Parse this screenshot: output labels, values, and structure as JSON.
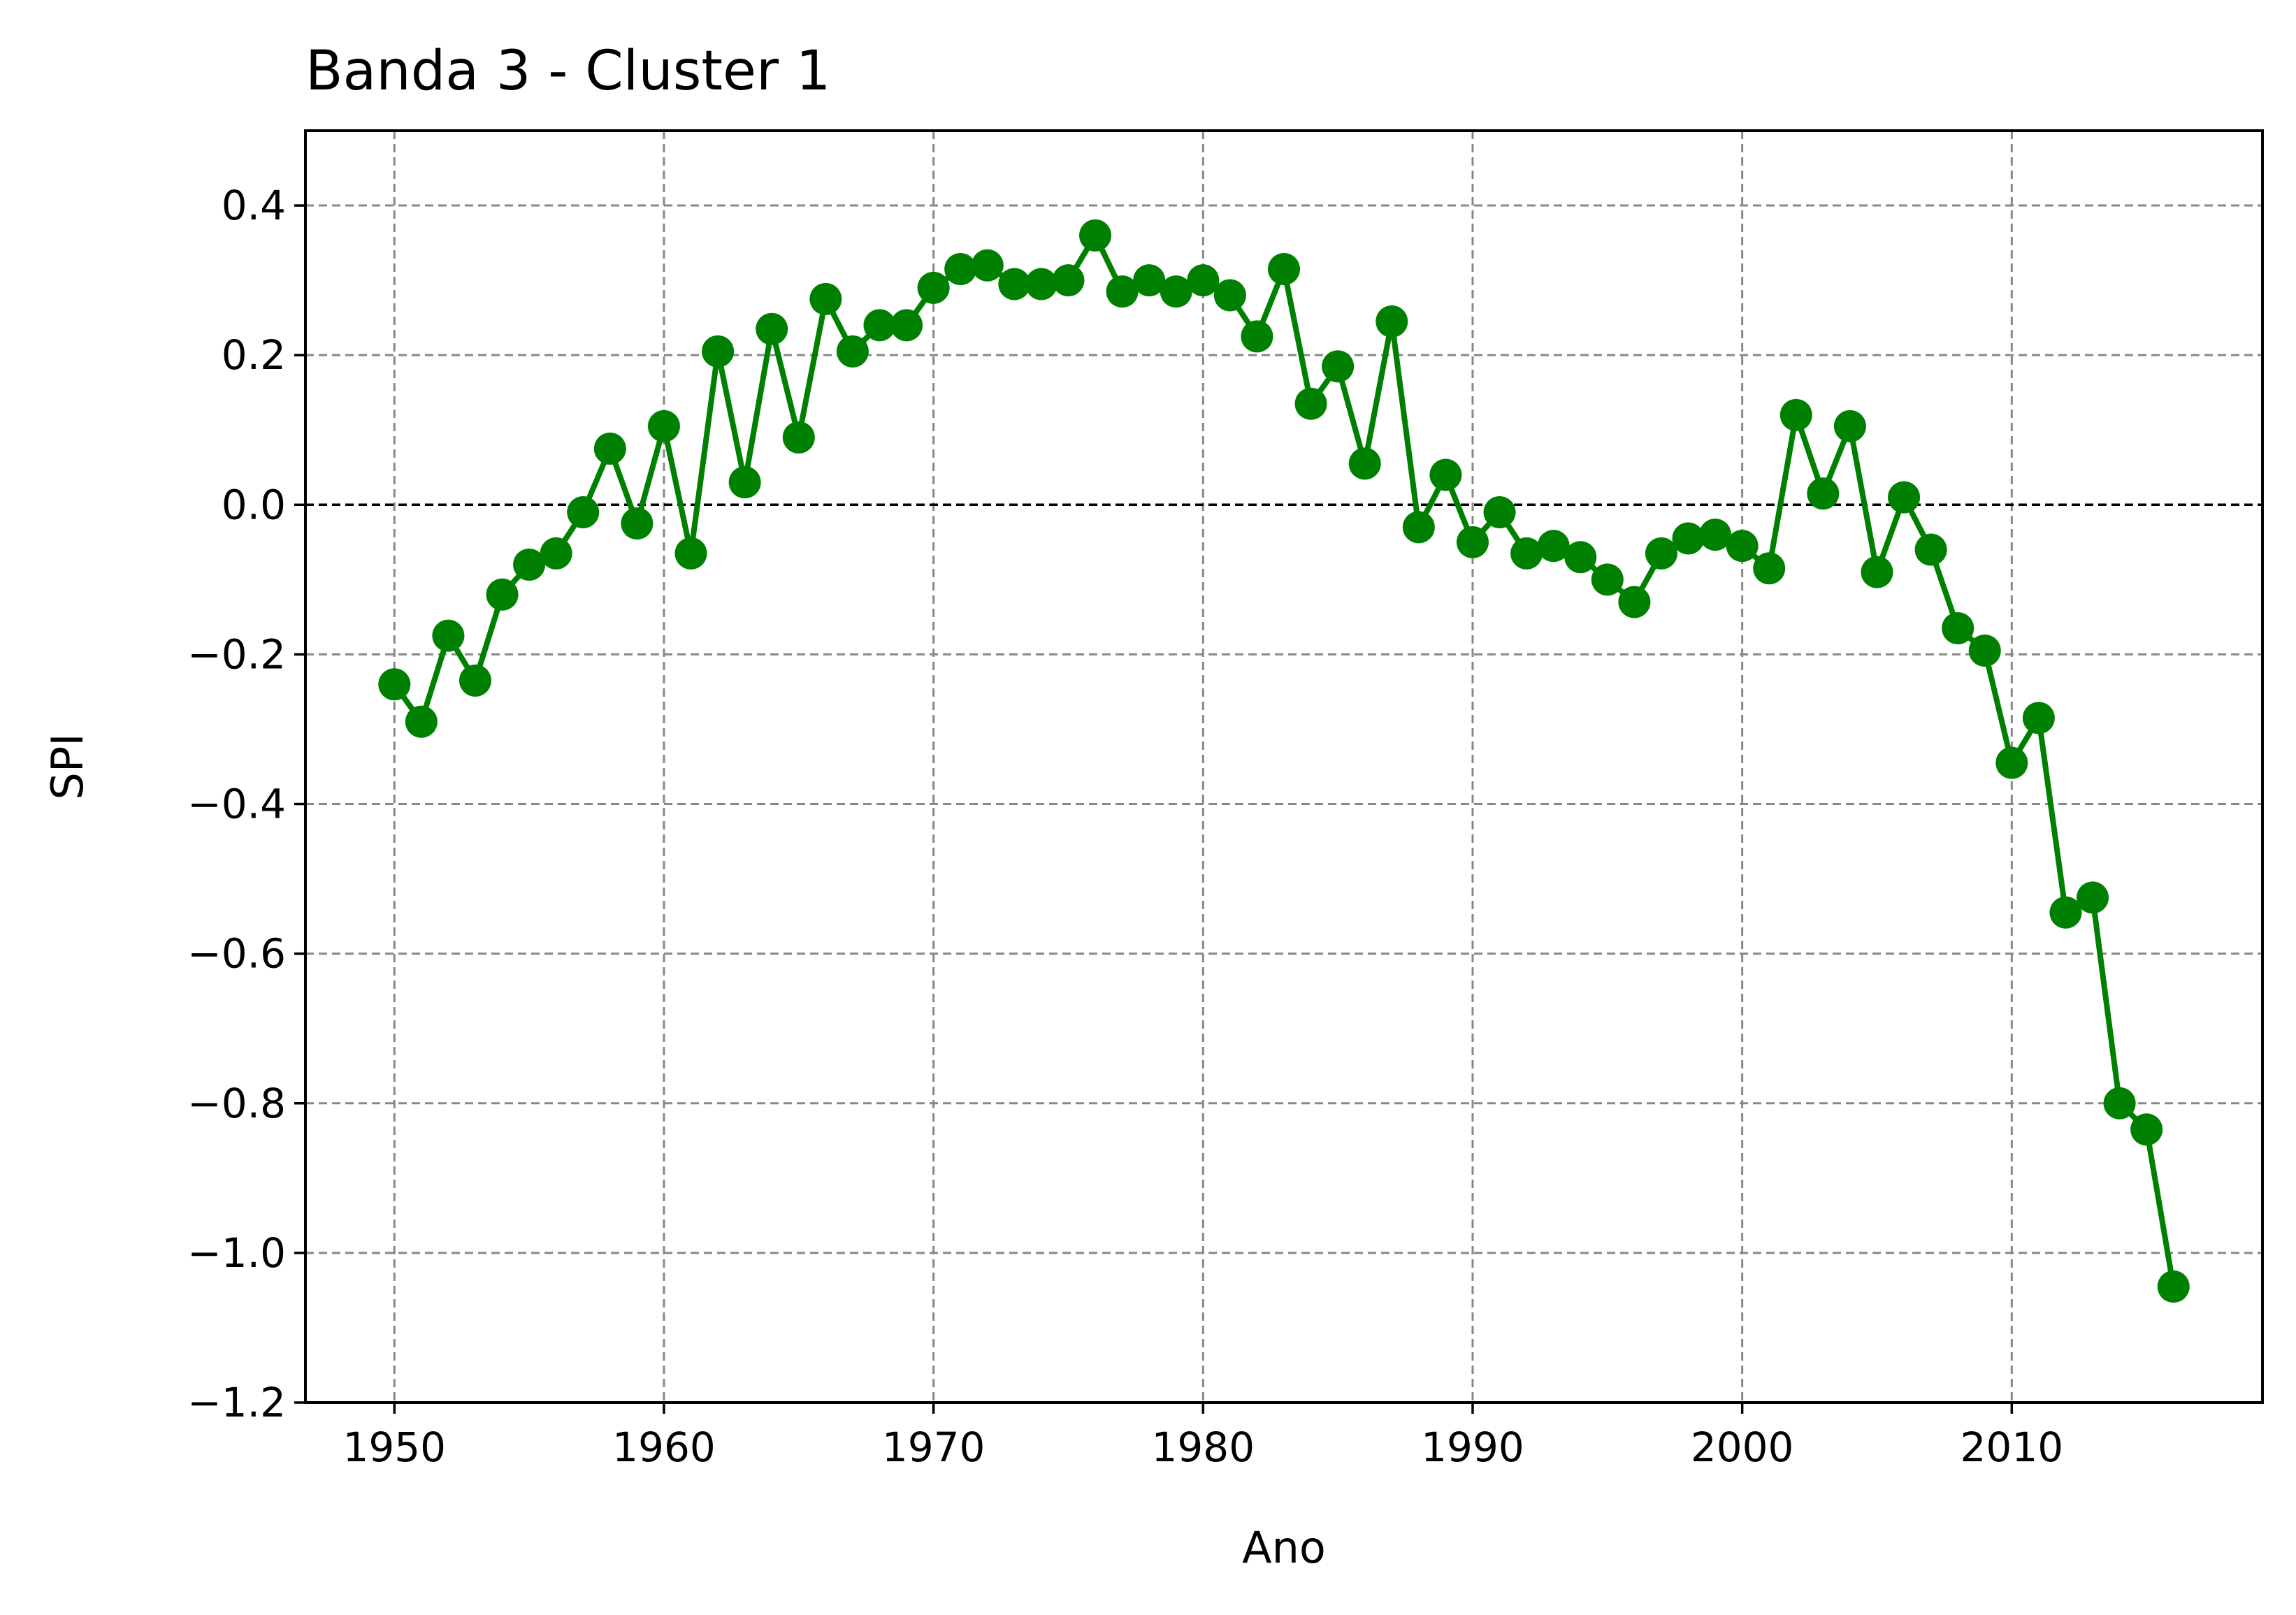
{
  "chart_data": {
    "type": "line",
    "title": "Banda 3 - Cluster 1",
    "xlabel": "Ano",
    "ylabel": "SPI",
    "xlim": [
      1946.7,
      2019.3
    ],
    "ylim": [
      -1.2,
      0.5
    ],
    "xticks": [
      1950,
      1960,
      1970,
      1980,
      1990,
      2000,
      2010
    ],
    "xtick_labels": [
      "1950",
      "1960",
      "1970",
      "1980",
      "1990",
      "2000",
      "2010"
    ],
    "yticks": [
      0.4,
      0.2,
      0.0,
      -0.2,
      -0.4,
      -0.6,
      -0.8,
      -1.0,
      -1.2
    ],
    "ytick_labels": [
      "0.4",
      "0.2",
      "0.0",
      "−0.2",
      "−0.4",
      "−0.6",
      "−0.8",
      "−1.0",
      "−1.2"
    ],
    "grid": true,
    "reference_line_y": 0.0,
    "series": [
      {
        "color": "#008000",
        "marker": "circle",
        "x": [
          1950,
          1951,
          1952,
          1953,
          1954,
          1955,
          1956,
          1957,
          1958,
          1959,
          1960,
          1961,
          1962,
          1963,
          1964,
          1965,
          1966,
          1967,
          1968,
          1969,
          1970,
          1971,
          1972,
          1973,
          1974,
          1975,
          1976,
          1977,
          1978,
          1979,
          1980,
          1981,
          1982,
          1983,
          1984,
          1985,
          1986,
          1987,
          1988,
          1989,
          1990,
          1991,
          1992,
          1993,
          1994,
          1995,
          1996,
          1997,
          1998,
          1999,
          2000,
          2001,
          2002,
          2003,
          2004,
          2005,
          2006,
          2007,
          2008,
          2009,
          2010,
          2011,
          2012,
          2013,
          2014,
          2015,
          2016
        ],
        "y": [
          -0.24,
          -0.29,
          -0.175,
          -0.235,
          -0.12,
          -0.08,
          -0.065,
          -0.01,
          0.075,
          -0.025,
          0.105,
          -0.065,
          0.205,
          0.03,
          0.235,
          0.09,
          0.275,
          0.205,
          0.24,
          0.24,
          0.29,
          0.315,
          0.32,
          0.295,
          0.295,
          0.3,
          0.36,
          0.285,
          0.3,
          0.285,
          0.3,
          0.28,
          0.225,
          0.315,
          0.135,
          0.185,
          0.055,
          0.245,
          -0.03,
          0.04,
          -0.05,
          -0.01,
          -0.065,
          -0.055,
          -0.07,
          -0.1,
          -0.13,
          -0.065,
          -0.045,
          -0.04,
          -0.055,
          -0.085,
          0.12,
          0.015,
          0.105,
          -0.09,
          0.01,
          -0.06,
          -0.165,
          -0.195,
          -0.345,
          -0.285,
          -0.545,
          -0.525,
          -0.8,
          -0.835,
          -1.045
        ]
      }
    ]
  }
}
